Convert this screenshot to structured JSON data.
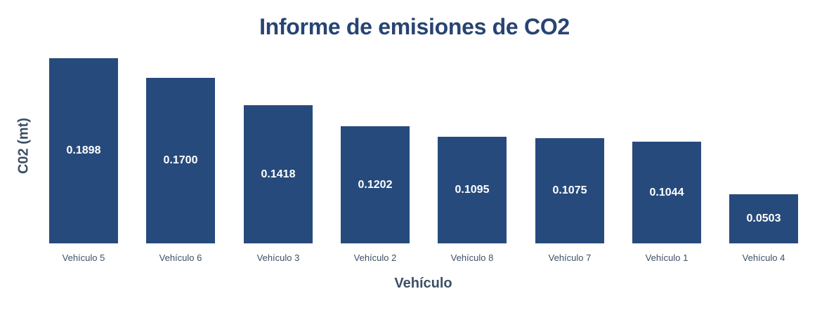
{
  "chart_data": {
    "type": "bar",
    "title": "Informe de emisiones de CO2",
    "xlabel": "Vehículo",
    "ylabel": "C02 (mt)",
    "categories": [
      "Vehículo 5",
      "Vehículo 6",
      "Vehículo 3",
      "Vehículo 2",
      "Vehículo 8",
      "Vehículo 7",
      "Vehículo 1",
      "Vehículo 4"
    ],
    "values": [
      0.1898,
      0.17,
      0.1418,
      0.1202,
      0.1095,
      0.1075,
      0.1044,
      0.0503
    ],
    "value_labels": [
      "0.1898",
      "0.1700",
      "0.1418",
      "0.1202",
      "0.1095",
      "0.1075",
      "0.1044",
      "0.0503"
    ],
    "ylim": [
      0,
      0.1898
    ],
    "grid": false,
    "legend": null,
    "bar_color": "#274a7c",
    "sorted": "descending"
  }
}
